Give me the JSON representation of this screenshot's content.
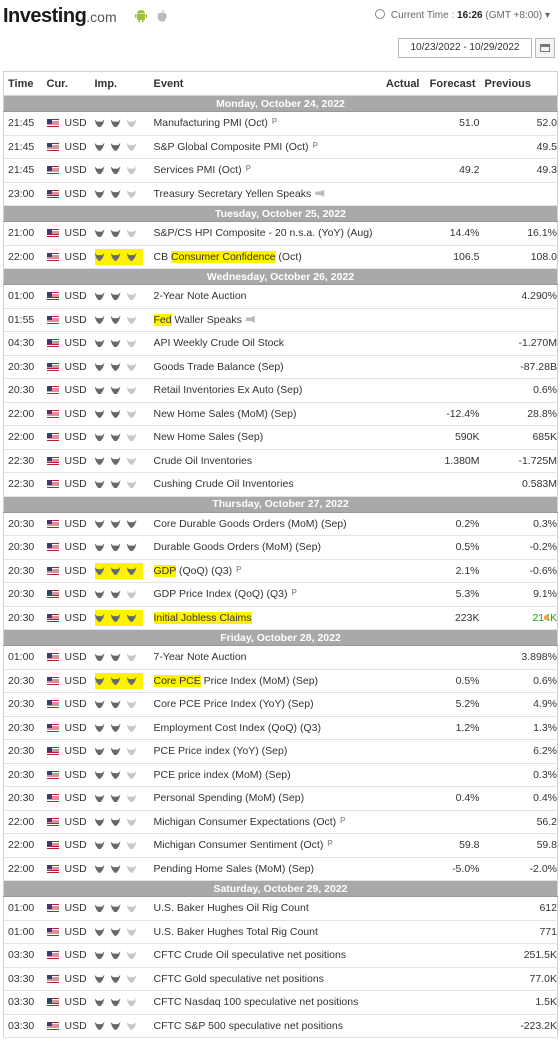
{
  "header": {
    "logo_main": "Investing",
    "logo_suffix": ".com",
    "current_time_label": "Current Time :",
    "current_time": "16:26",
    "timezone": "(GMT +8:00)",
    "date_range": "10/23/2022 - 10/29/2022"
  },
  "columns": {
    "time": "Time",
    "currency": "Cur.",
    "importance": "Imp.",
    "event": "Event",
    "actual": "Actual",
    "forecast": "Forecast",
    "previous": "Previous"
  },
  "colors": {
    "day_header_bg": "#a9a9a9",
    "highlight": "#fff200",
    "positive": "#0ea600",
    "alert_dot": "#f3a33a"
  },
  "days": [
    {
      "label": "Monday, October 24, 2022",
      "events": [
        {
          "time": "21:45",
          "cur": "USD",
          "imp": 2,
          "event": "Manufacturing PMI (Oct)",
          "prelim": "P",
          "actual": "",
          "forecast": "51.0",
          "previous": "52.0"
        },
        {
          "time": "21:45",
          "cur": "USD",
          "imp": 2,
          "event": "S&P Global Composite PMI (Oct)",
          "prelim": "P",
          "actual": "",
          "forecast": "",
          "previous": "49.5"
        },
        {
          "time": "21:45",
          "cur": "USD",
          "imp": 2,
          "event": "Services PMI (Oct)",
          "prelim": "P",
          "actual": "",
          "forecast": "49.2",
          "previous": "49.3"
        },
        {
          "time": "23:00",
          "cur": "USD",
          "imp": 2,
          "event": "Treasury Secretary Yellen Speaks",
          "speech": true,
          "actual": "",
          "forecast": "",
          "previous": ""
        }
      ]
    },
    {
      "label": "Tuesday, October 25, 2022",
      "events": [
        {
          "time": "21:00",
          "cur": "USD",
          "imp": 2,
          "event": "S&P/CS HPI Composite - 20 n.s.a. (YoY) (Aug)",
          "actual": "",
          "forecast": "14.4%",
          "previous": "16.1%"
        },
        {
          "time": "22:00",
          "cur": "USD",
          "imp": 3,
          "imp_hl": true,
          "event_prefix": "CB ",
          "event_hl": "Consumer Confidence",
          "event_suffix": " (Oct)",
          "actual": "",
          "forecast": "106.5",
          "previous": "108.0"
        }
      ]
    },
    {
      "label": "Wednesday, October 26, 2022",
      "events": [
        {
          "time": "01:00",
          "cur": "USD",
          "imp": 2,
          "event": "2-Year Note Auction",
          "actual": "",
          "forecast": "",
          "previous": "4.290%"
        },
        {
          "time": "01:55",
          "cur": "USD",
          "imp": 2,
          "event_hl": "Fed",
          "event_suffix": " Waller Speaks",
          "speech": true,
          "actual": "",
          "forecast": "",
          "previous": ""
        },
        {
          "time": "04:30",
          "cur": "USD",
          "imp": 2,
          "event": "API Weekly Crude Oil Stock",
          "actual": "",
          "forecast": "",
          "previous": "-1.270M"
        },
        {
          "time": "20:30",
          "cur": "USD",
          "imp": 2,
          "event": "Goods Trade Balance (Sep)",
          "actual": "",
          "forecast": "",
          "previous": "-87.28B"
        },
        {
          "time": "20:30",
          "cur": "USD",
          "imp": 2,
          "event": "Retail Inventories Ex Auto (Sep)",
          "actual": "",
          "forecast": "",
          "previous": "0.6%"
        },
        {
          "time": "22:00",
          "cur": "USD",
          "imp": 2,
          "event": "New Home Sales (MoM) (Sep)",
          "actual": "",
          "forecast": "-12.4%",
          "previous": "28.8%"
        },
        {
          "time": "22:00",
          "cur": "USD",
          "imp": 2,
          "event": "New Home Sales (Sep)",
          "actual": "",
          "forecast": "590K",
          "previous": "685K"
        },
        {
          "time": "22:30",
          "cur": "USD",
          "imp": 2,
          "event": "Crude Oil Inventories",
          "actual": "",
          "forecast": "1.380M",
          "previous": "-1.725M"
        },
        {
          "time": "22:30",
          "cur": "USD",
          "imp": 2,
          "event": "Cushing Crude Oil Inventories",
          "actual": "",
          "forecast": "",
          "previous": "0.583M"
        }
      ]
    },
    {
      "label": "Thursday, October 27, 2022",
      "events": [
        {
          "time": "20:30",
          "cur": "USD",
          "imp": 3,
          "event": "Core Durable Goods Orders (MoM) (Sep)",
          "actual": "",
          "forecast": "0.2%",
          "previous": "0.3%"
        },
        {
          "time": "20:30",
          "cur": "USD",
          "imp": 3,
          "event": "Durable Goods Orders (MoM) (Sep)",
          "actual": "",
          "forecast": "0.5%",
          "previous": "-0.2%"
        },
        {
          "time": "20:30",
          "cur": "USD",
          "imp": 3,
          "imp_hl": true,
          "event_hl": "GDP",
          "event_suffix": " (QoQ) (Q3)",
          "prelim": "P",
          "actual": "",
          "forecast": "2.1%",
          "previous": "-0.6%"
        },
        {
          "time": "20:30",
          "cur": "USD",
          "imp": 2,
          "event": "GDP Price Index (QoQ) (Q3)",
          "prelim": "P",
          "actual": "",
          "forecast": "5.3%",
          "previous": "9.1%"
        },
        {
          "time": "20:30",
          "cur": "USD",
          "imp": 3,
          "imp_hl": true,
          "event_hl": "Initial Jobless Claims",
          "event_suffix": " ",
          "actual": "",
          "forecast": "223K",
          "previous": "214K",
          "previous_green": true,
          "dot": true
        }
      ]
    },
    {
      "label": "Friday, October 28, 2022",
      "events": [
        {
          "time": "01:00",
          "cur": "USD",
          "imp": 2,
          "event": "7-Year Note Auction",
          "actual": "",
          "forecast": "",
          "previous": "3.898%"
        },
        {
          "time": "20:30",
          "cur": "USD",
          "imp": 3,
          "imp_hl": true,
          "event_hl": "Core PCE",
          "event_suffix": " Price Index (MoM) (Sep)",
          "actual": "",
          "forecast": "0.5%",
          "previous": "0.6%"
        },
        {
          "time": "20:30",
          "cur": "USD",
          "imp": 2,
          "event": "Core PCE Price Index (YoY) (Sep)",
          "actual": "",
          "forecast": "5.2%",
          "previous": "4.9%"
        },
        {
          "time": "20:30",
          "cur": "USD",
          "imp": 2,
          "event": "Employment Cost Index (QoQ) (Q3)",
          "actual": "",
          "forecast": "1.2%",
          "previous": "1.3%"
        },
        {
          "time": "20:30",
          "cur": "USD",
          "imp": 2,
          "event": "PCE Price index (YoY) (Sep)",
          "actual": "",
          "forecast": "",
          "previous": "6.2%"
        },
        {
          "time": "20:30",
          "cur": "USD",
          "imp": 2,
          "event": "PCE price index (MoM) (Sep)",
          "actual": "",
          "forecast": "",
          "previous": "0.3%"
        },
        {
          "time": "20:30",
          "cur": "USD",
          "imp": 2,
          "event": "Personal Spending (MoM) (Sep)",
          "actual": "",
          "forecast": "0.4%",
          "previous": "0.4%"
        },
        {
          "time": "22:00",
          "cur": "USD",
          "imp": 2,
          "event": "Michigan Consumer Expectations (Oct)",
          "prelim": "P",
          "actual": "",
          "forecast": "",
          "previous": "56.2"
        },
        {
          "time": "22:00",
          "cur": "USD",
          "imp": 2,
          "event": "Michigan Consumer Sentiment (Oct)",
          "prelim": "P",
          "actual": "",
          "forecast": "59.8",
          "previous": "59.8"
        },
        {
          "time": "22:00",
          "cur": "USD",
          "imp": 2,
          "event": "Pending Home Sales (MoM) (Sep)",
          "actual": "",
          "forecast": "-5.0%",
          "previous": "-2.0%"
        }
      ]
    },
    {
      "label": "Saturday, October 29, 2022",
      "events": [
        {
          "time": "01:00",
          "cur": "USD",
          "imp": 2,
          "event": "U.S. Baker Hughes Oil Rig Count",
          "actual": "",
          "forecast": "",
          "previous": "612"
        },
        {
          "time": "01:00",
          "cur": "USD",
          "imp": 2,
          "event": "U.S. Baker Hughes Total Rig Count",
          "actual": "",
          "forecast": "",
          "previous": "771"
        },
        {
          "time": "03:30",
          "cur": "USD",
          "imp": 2,
          "event": "CFTC Crude Oil speculative net positions",
          "actual": "",
          "forecast": "",
          "previous": "251.5K"
        },
        {
          "time": "03:30",
          "cur": "USD",
          "imp": 2,
          "event": "CFTC Gold speculative net positions",
          "actual": "",
          "forecast": "",
          "previous": "77.0K"
        },
        {
          "time": "03:30",
          "cur": "USD",
          "imp": 2,
          "event": "CFTC Nasdaq 100 speculative net positions",
          "actual": "",
          "forecast": "",
          "previous": "1.5K"
        },
        {
          "time": "03:30",
          "cur": "USD",
          "imp": 2,
          "event": "CFTC S&P 500 speculative net positions",
          "actual": "",
          "forecast": "",
          "previous": "-223.2K"
        }
      ]
    }
  ]
}
